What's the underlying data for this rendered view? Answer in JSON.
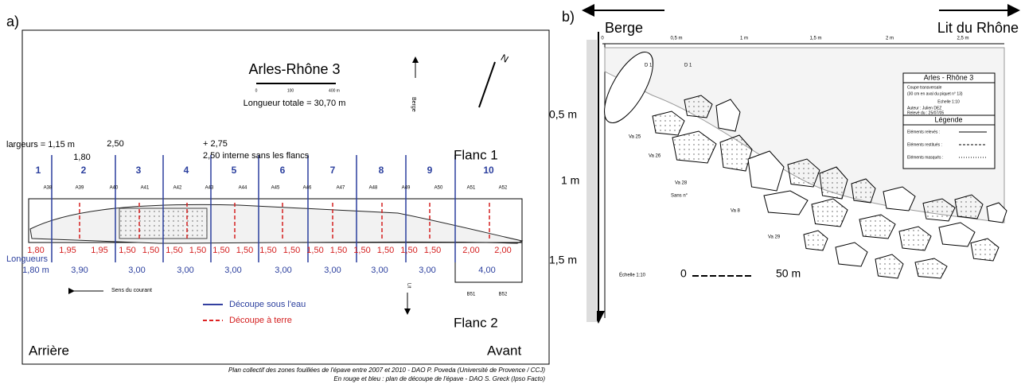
{
  "panel_a": {
    "label": "a)",
    "title": "Arles-Rhône 3",
    "scale": [
      "0",
      "100",
      "400 m"
    ],
    "total_length": "Longueur totale = 30,70 m",
    "berge": "Berge",
    "north": "N",
    "widths": {
      "first": "largeurs = 1,15 m",
      "w2": "1,80",
      "w3": "2,50",
      "w4": "+ 2,75",
      "w4_note": "2,50 interne sans les flancs"
    },
    "flank_1": "Flanc 1",
    "flank_2": "Flanc 2",
    "sections": [
      "1",
      "2",
      "3",
      "4",
      "5",
      "6",
      "7",
      "8",
      "9",
      "10"
    ],
    "codes": [
      "A38",
      "A39",
      "A40",
      "A41",
      "A42",
      "A43",
      "A44",
      "A45",
      "A46",
      "A47",
      "A48",
      "A49",
      "A50",
      "A51",
      "A52"
    ],
    "red_lengths": [
      "1,80",
      "1,95",
      "1,95",
      "1,50",
      "1,50",
      "1,50",
      "1,50",
      "1,50",
      "1,50",
      "1,50",
      "1,50",
      "1,50",
      "1,50",
      "1,50",
      "1,50",
      "1,50",
      "1,50",
      "2,00",
      "2,00"
    ],
    "lengths_label": "Longueurs",
    "blue_lengths": [
      "1,80 m",
      "3,90",
      "3,00",
      "3,00",
      "3,00",
      "3,00",
      "3,00",
      "3,00",
      "3,00",
      "4,00"
    ],
    "codes_b": [
      "B51",
      "B52"
    ],
    "current": "Sens du courant",
    "lit": "Lit",
    "legend": [
      "Découpe sous l'eau",
      "Découpe à terre"
    ],
    "rear": "Arrière",
    "front": "Avant",
    "caption": [
      "Plan collectif des zones fouillées de l'épave entre 2007 et 2010 - DAO P. Poveda (Université de Provence / CCJ)",
      "En rouge et bleu : plan de découpe de l'épave - DAO S. Greck (Ipso Facto)"
    ]
  },
  "panel_b": {
    "label": "b)",
    "left_arrow": "Berge",
    "right_arrow": "Lit du Rhône",
    "top_ruler": [
      "0",
      "0,5 m",
      "1 m",
      "1,5 m",
      "2 m",
      "2,5 m"
    ],
    "left_ruler": [
      "0,5 m",
      "1 m",
      "1,5 m"
    ],
    "box": {
      "title": "Arles - Rhône 3",
      "lines": [
        "Coupe transversale",
        "(30 cm en aval du piquet n° 13)",
        "Echelle 1:10",
        "Auteur : Julien DEZ",
        "Relevé du : 25/07/05"
      ],
      "legend_title": "Légende",
      "legend": [
        "Eléments relevés :",
        "Eléments restitués :",
        "Eléments masqués :"
      ]
    },
    "labels": [
      "D 1",
      "D 1",
      "Va 25",
      "Va 26",
      "Va 28",
      "Sans n°",
      "Va 8",
      "Va 29"
    ],
    "scale_note": "Échelle 1:10",
    "scale": [
      "0",
      "50 m"
    ]
  }
}
